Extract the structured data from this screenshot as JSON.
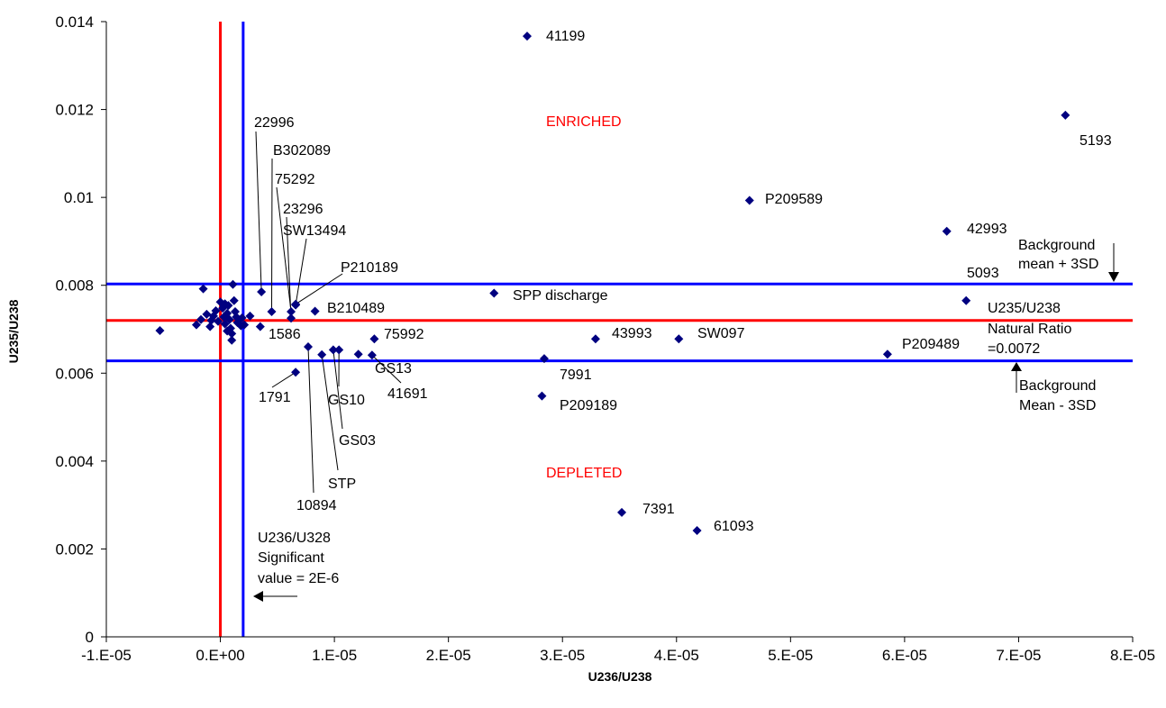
{
  "chart_data": {
    "type": "scatter",
    "title": "",
    "xlabel": "U236/U238",
    "ylabel": "U235/U238",
    "xlim": [
      -1e-05,
      8e-05
    ],
    "ylim": [
      0,
      0.014
    ],
    "grid": false,
    "legend": "none",
    "marker_color": "#000080",
    "x_ticks": [
      -1e-05,
      0,
      1e-05,
      2e-05,
      3e-05,
      4e-05,
      5e-05,
      6e-05,
      7e-05,
      8e-05
    ],
    "x_tick_labels": [
      "-1.E-05",
      "0.E+00",
      "1.E-05",
      "2.E-05",
      "3.E-05",
      "4.E-05",
      "5.E-05",
      "6.E-05",
      "7.E-05",
      "8.E-05"
    ],
    "y_ticks": [
      0,
      0.002,
      0.004,
      0.006,
      0.008,
      0.01,
      0.012,
      0.014
    ],
    "y_tick_labels": [
      "0",
      "0.002",
      "0.004",
      "0.006",
      "0.008",
      "0.01",
      "0.012",
      "0.014"
    ],
    "reference_lines": [
      {
        "orientation": "vertical",
        "value": 0,
        "color": "#ff0000"
      },
      {
        "orientation": "vertical",
        "value": 2e-06,
        "color": "#0000ff"
      },
      {
        "orientation": "horizontal",
        "value": 0.0072,
        "color": "#ff0000"
      },
      {
        "orientation": "horizontal",
        "value": 0.00803,
        "color": "#0000ff"
      },
      {
        "orientation": "horizontal",
        "value": 0.00628,
        "color": "#0000ff"
      }
    ],
    "points": [
      {
        "x": 2.69e-05,
        "y": 0.01367,
        "label": "41199"
      },
      {
        "x": 7.41e-05,
        "y": 0.01187,
        "label": "5193"
      },
      {
        "x": 4.64e-05,
        "y": 0.00993,
        "label": "P209589"
      },
      {
        "x": 6.37e-05,
        "y": 0.00923,
        "label": "42993"
      },
      {
        "x": 6.54e-05,
        "y": 0.00765,
        "label": "5093"
      },
      {
        "x": 2.4e-05,
        "y": 0.00782,
        "label": "SPP discharge"
      },
      {
        "x": 3.29e-05,
        "y": 0.00678,
        "label": "43993"
      },
      {
        "x": 4.02e-05,
        "y": 0.00678,
        "label": "SW097"
      },
      {
        "x": 5.85e-05,
        "y": 0.00643,
        "label": "P209489"
      },
      {
        "x": 2.84e-05,
        "y": 0.00633,
        "label": "7991"
      },
      {
        "x": 2.82e-05,
        "y": 0.00548,
        "label": "P209189"
      },
      {
        "x": 3.52e-05,
        "y": 0.00283,
        "label": "7391"
      },
      {
        "x": 4.18e-05,
        "y": 0.00242,
        "label": "61093"
      },
      {
        "x": 3.6e-06,
        "y": 0.00785,
        "label": "22996"
      },
      {
        "x": 4.5e-06,
        "y": 0.0074,
        "label": "B302089"
      },
      {
        "x": 6.2e-06,
        "y": 0.0074,
        "label": "75292"
      },
      {
        "x": 6.2e-06,
        "y": 0.00725,
        "label": "23296"
      },
      {
        "x": 6.6e-06,
        "y": 0.00755,
        "label": "SW13494"
      },
      {
        "x": 6.6e-06,
        "y": 0.00757,
        "label": "P210189"
      },
      {
        "x": 8.3e-06,
        "y": 0.00741,
        "label": "B210489"
      },
      {
        "x": 3.5e-06,
        "y": 0.00706,
        "label": "1586"
      },
      {
        "x": 1.35e-05,
        "y": 0.00678,
        "label": "75992"
      },
      {
        "x": 1.21e-05,
        "y": 0.00643,
        "label": "GS13"
      },
      {
        "x": 1.33e-05,
        "y": 0.00641,
        "label": "41691"
      },
      {
        "x": 1.04e-05,
        "y": 0.00653,
        "label": "GS10"
      },
      {
        "x": 9.9e-06,
        "y": 0.00653,
        "label": "GS03"
      },
      {
        "x": 8.9e-06,
        "y": 0.00642,
        "label": "STP"
      },
      {
        "x": 7.7e-06,
        "y": 0.0066,
        "label": "10894"
      },
      {
        "x": 6.6e-06,
        "y": 0.00602,
        "label": "1791"
      },
      {
        "x": -5.3e-06,
        "y": 0.00697,
        "label": ""
      },
      {
        "x": -2.1e-06,
        "y": 0.0071,
        "label": ""
      },
      {
        "x": -1.5e-06,
        "y": 0.00792,
        "label": ""
      },
      {
        "x": -1.7e-06,
        "y": 0.00722,
        "label": ""
      },
      {
        "x": -1.2e-06,
        "y": 0.00734,
        "label": ""
      },
      {
        "x": -9e-07,
        "y": 0.00706,
        "label": ""
      },
      {
        "x": -6e-07,
        "y": 0.0073,
        "label": ""
      },
      {
        "x": -4e-07,
        "y": 0.00742,
        "label": ""
      },
      {
        "x": -2e-07,
        "y": 0.00718,
        "label": ""
      },
      {
        "x": 0.0,
        "y": 0.00762,
        "label": ""
      },
      {
        "x": 2e-07,
        "y": 0.00748,
        "label": ""
      },
      {
        "x": 3e-07,
        "y": 0.00728,
        "label": ""
      },
      {
        "x": 4e-07,
        "y": 0.00712,
        "label": ""
      },
      {
        "x": 6e-07,
        "y": 0.00736,
        "label": ""
      },
      {
        "x": 7e-07,
        "y": 0.00754,
        "label": ""
      },
      {
        "x": 8e-07,
        "y": 0.00722,
        "label": ""
      },
      {
        "x": 9e-07,
        "y": 0.00702,
        "label": ""
      },
      {
        "x": 1e-06,
        "y": 0.0069,
        "label": ""
      },
      {
        "x": 1e-06,
        "y": 0.00675,
        "label": ""
      },
      {
        "x": 1.1e-06,
        "y": 0.00802,
        "label": ""
      },
      {
        "x": 1.2e-06,
        "y": 0.00765,
        "label": ""
      },
      {
        "x": 1.3e-06,
        "y": 0.0074,
        "label": ""
      },
      {
        "x": 1.4e-06,
        "y": 0.00728,
        "label": ""
      },
      {
        "x": 1.5e-06,
        "y": 0.00715,
        "label": ""
      },
      {
        "x": 1.6e-06,
        "y": 0.00722,
        "label": ""
      },
      {
        "x": 1.8e-06,
        "y": 0.00708,
        "label": ""
      },
      {
        "x": 1.9e-06,
        "y": 0.00726,
        "label": ""
      },
      {
        "x": 2.1e-06,
        "y": 0.0071,
        "label": ""
      },
      {
        "x": 2.6e-06,
        "y": 0.0073,
        "label": ""
      },
      {
        "x": 4e-07,
        "y": 0.00758,
        "label": ""
      },
      {
        "x": -8e-07,
        "y": 0.0072,
        "label": ""
      },
      {
        "x": 6e-07,
        "y": 0.00696,
        "label": ""
      }
    ],
    "zone_labels": [
      "ENRICHED",
      "DEPLETED"
    ],
    "annotations": [
      "Background mean + 3SD",
      "U235/U238 Natural Ratio =0.0072",
      "Background Mean - 3SD",
      "U236/U328 Significant value = 2E-6"
    ]
  }
}
